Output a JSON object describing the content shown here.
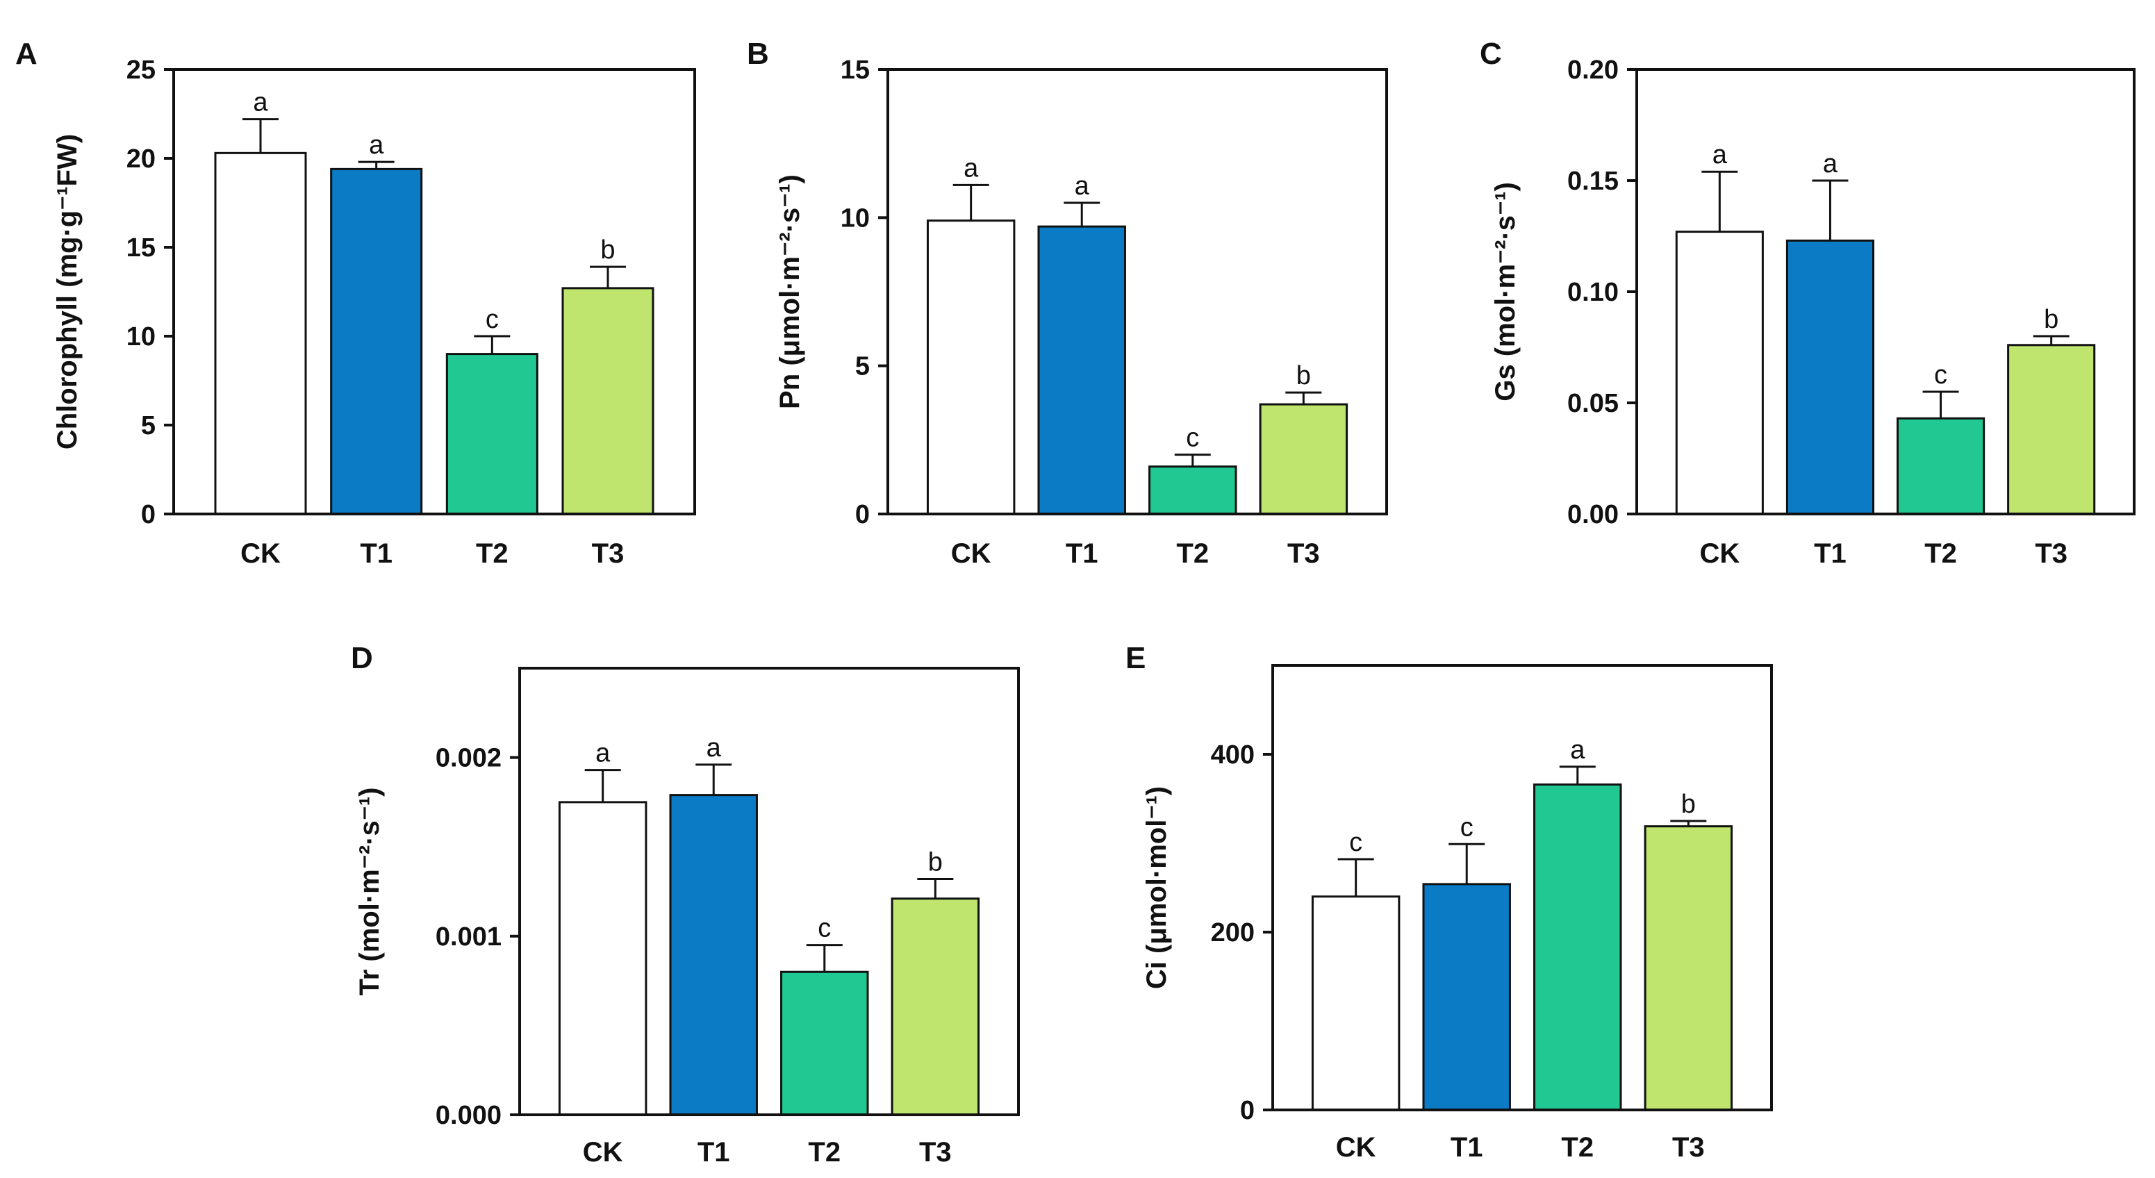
{
  "chart_data": [
    {
      "type": "bar",
      "panel": "A",
      "categories": [
        "CK",
        "T1",
        "T2",
        "T3"
      ],
      "values": [
        20.3,
        19.4,
        9.0,
        12.7
      ],
      "errors": [
        1.9,
        0.4,
        1.0,
        1.2
      ],
      "significance": [
        "a",
        "a",
        "c",
        "b"
      ],
      "ylim": [
        0,
        25
      ],
      "yticks": [
        0,
        5,
        10,
        15,
        20,
        25
      ],
      "ytick_labels": [
        "0",
        "5",
        "10",
        "15",
        "20",
        "25"
      ],
      "ylabel": "Chlorophyll (mg·g⁻¹FW)",
      "xlabel": ""
    },
    {
      "type": "bar",
      "panel": "B",
      "categories": [
        "CK",
        "T1",
        "T2",
        "T3"
      ],
      "values": [
        9.9,
        9.7,
        1.6,
        3.7
      ],
      "errors": [
        1.2,
        0.8,
        0.4,
        0.4
      ],
      "significance": [
        "a",
        "a",
        "c",
        "b"
      ],
      "ylim": [
        0,
        15
      ],
      "yticks": [
        0,
        5,
        10,
        15
      ],
      "ytick_labels": [
        "0",
        "5",
        "10",
        "15"
      ],
      "ylabel": "Pn (μmol·m⁻²·s⁻¹)",
      "xlabel": ""
    },
    {
      "type": "bar",
      "panel": "C",
      "categories": [
        "CK",
        "T1",
        "T2",
        "T3"
      ],
      "values": [
        0.127,
        0.123,
        0.043,
        0.076
      ],
      "errors": [
        0.027,
        0.027,
        0.012,
        0.004
      ],
      "significance": [
        "a",
        "a",
        "c",
        "b"
      ],
      "ylim": [
        0,
        0.2
      ],
      "yticks": [
        0,
        0.05,
        0.1,
        0.15,
        0.2
      ],
      "ytick_labels": [
        "0.00",
        "0.05",
        "0.10",
        "0.15",
        "0.20"
      ],
      "ylabel": "Gs (mol·m⁻²·s⁻¹)",
      "xlabel": ""
    },
    {
      "type": "bar",
      "panel": "D",
      "categories": [
        "CK",
        "T1",
        "T2",
        "T3"
      ],
      "values": [
        0.00175,
        0.00179,
        0.0008,
        0.00121
      ],
      "errors": [
        0.00018,
        0.00017,
        0.00015,
        0.00011
      ],
      "significance": [
        "a",
        "a",
        "c",
        "b"
      ],
      "ylim": [
        0,
        0.0025
      ],
      "yticks": [
        0,
        0.001,
        0.002
      ],
      "ytick_labels": [
        "0.000",
        "0.001",
        "0.002"
      ],
      "ylabel": "Tr (mol·m⁻²·s⁻¹)",
      "xlabel": ""
    },
    {
      "type": "bar",
      "panel": "E",
      "categories": [
        "CK",
        "T1",
        "T2",
        "T3"
      ],
      "values": [
        240,
        254,
        366,
        319
      ],
      "errors": [
        42,
        45,
        20,
        6
      ],
      "significance": [
        "c",
        "c",
        "a",
        "b"
      ],
      "ylim": [
        0,
        500
      ],
      "yticks": [
        0,
        200,
        400
      ],
      "ytick_labels": [
        "0",
        "200",
        "400"
      ],
      "ylabel": "Ci (μmol·mol⁻¹)",
      "xlabel": ""
    }
  ],
  "colors": {
    "CK": "#ffffff",
    "T1": "#0a7bc4",
    "T2": "#22c891",
    "T3": "#bfe56e",
    "axis": "#111111"
  }
}
